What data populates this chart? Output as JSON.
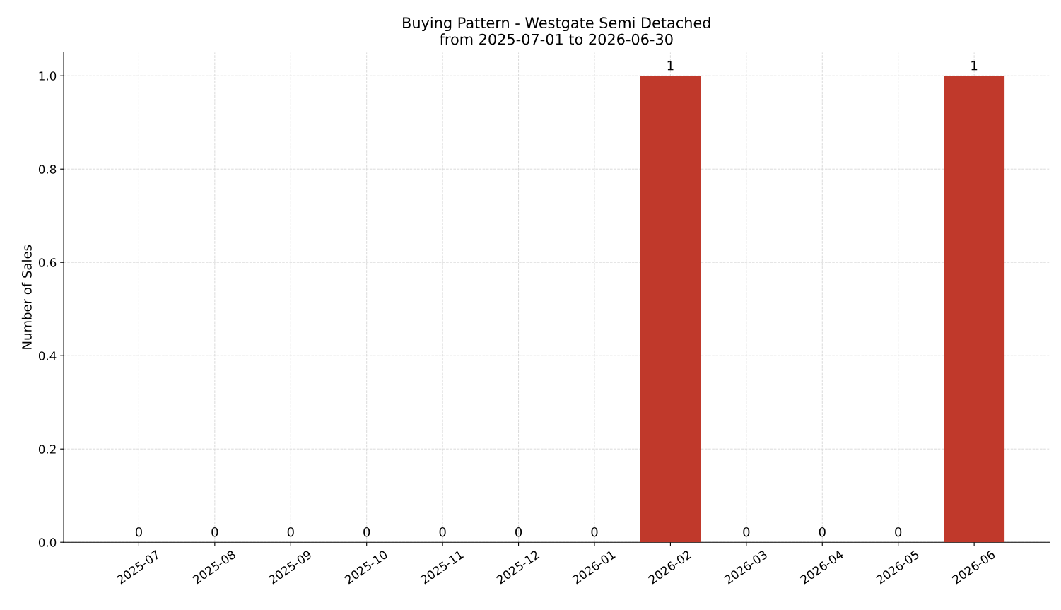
{
  "chart_data": {
    "type": "bar",
    "title": "Buying Pattern - Westgate Semi Detached\nfrom 2025-07-01 to 2026-06-30",
    "ylabel": "Number of Sales",
    "categories": [
      "2025-07",
      "2025-08",
      "2025-09",
      "2025-10",
      "2025-11",
      "2025-12",
      "2026-01",
      "2026-02",
      "2026-03",
      "2026-04",
      "2026-05",
      "2026-06"
    ],
    "values": [
      0,
      0,
      0,
      0,
      0,
      0,
      0,
      1,
      0,
      0,
      0,
      1
    ],
    "color": "#c0392b",
    "ylim": [
      0,
      1.05
    ],
    "yticks": [
      {
        "value": 0,
        "label": "0.0"
      },
      {
        "value": 0.2,
        "label": "0.2"
      },
      {
        "value": 0.4,
        "label": "0.4"
      },
      {
        "value": 0.6,
        "label": "0.6"
      },
      {
        "value": 0.8,
        "label": "0.8"
      },
      {
        "value": 1,
        "label": "1.0"
      }
    ],
    "grid": true,
    "data_labels": true
  }
}
